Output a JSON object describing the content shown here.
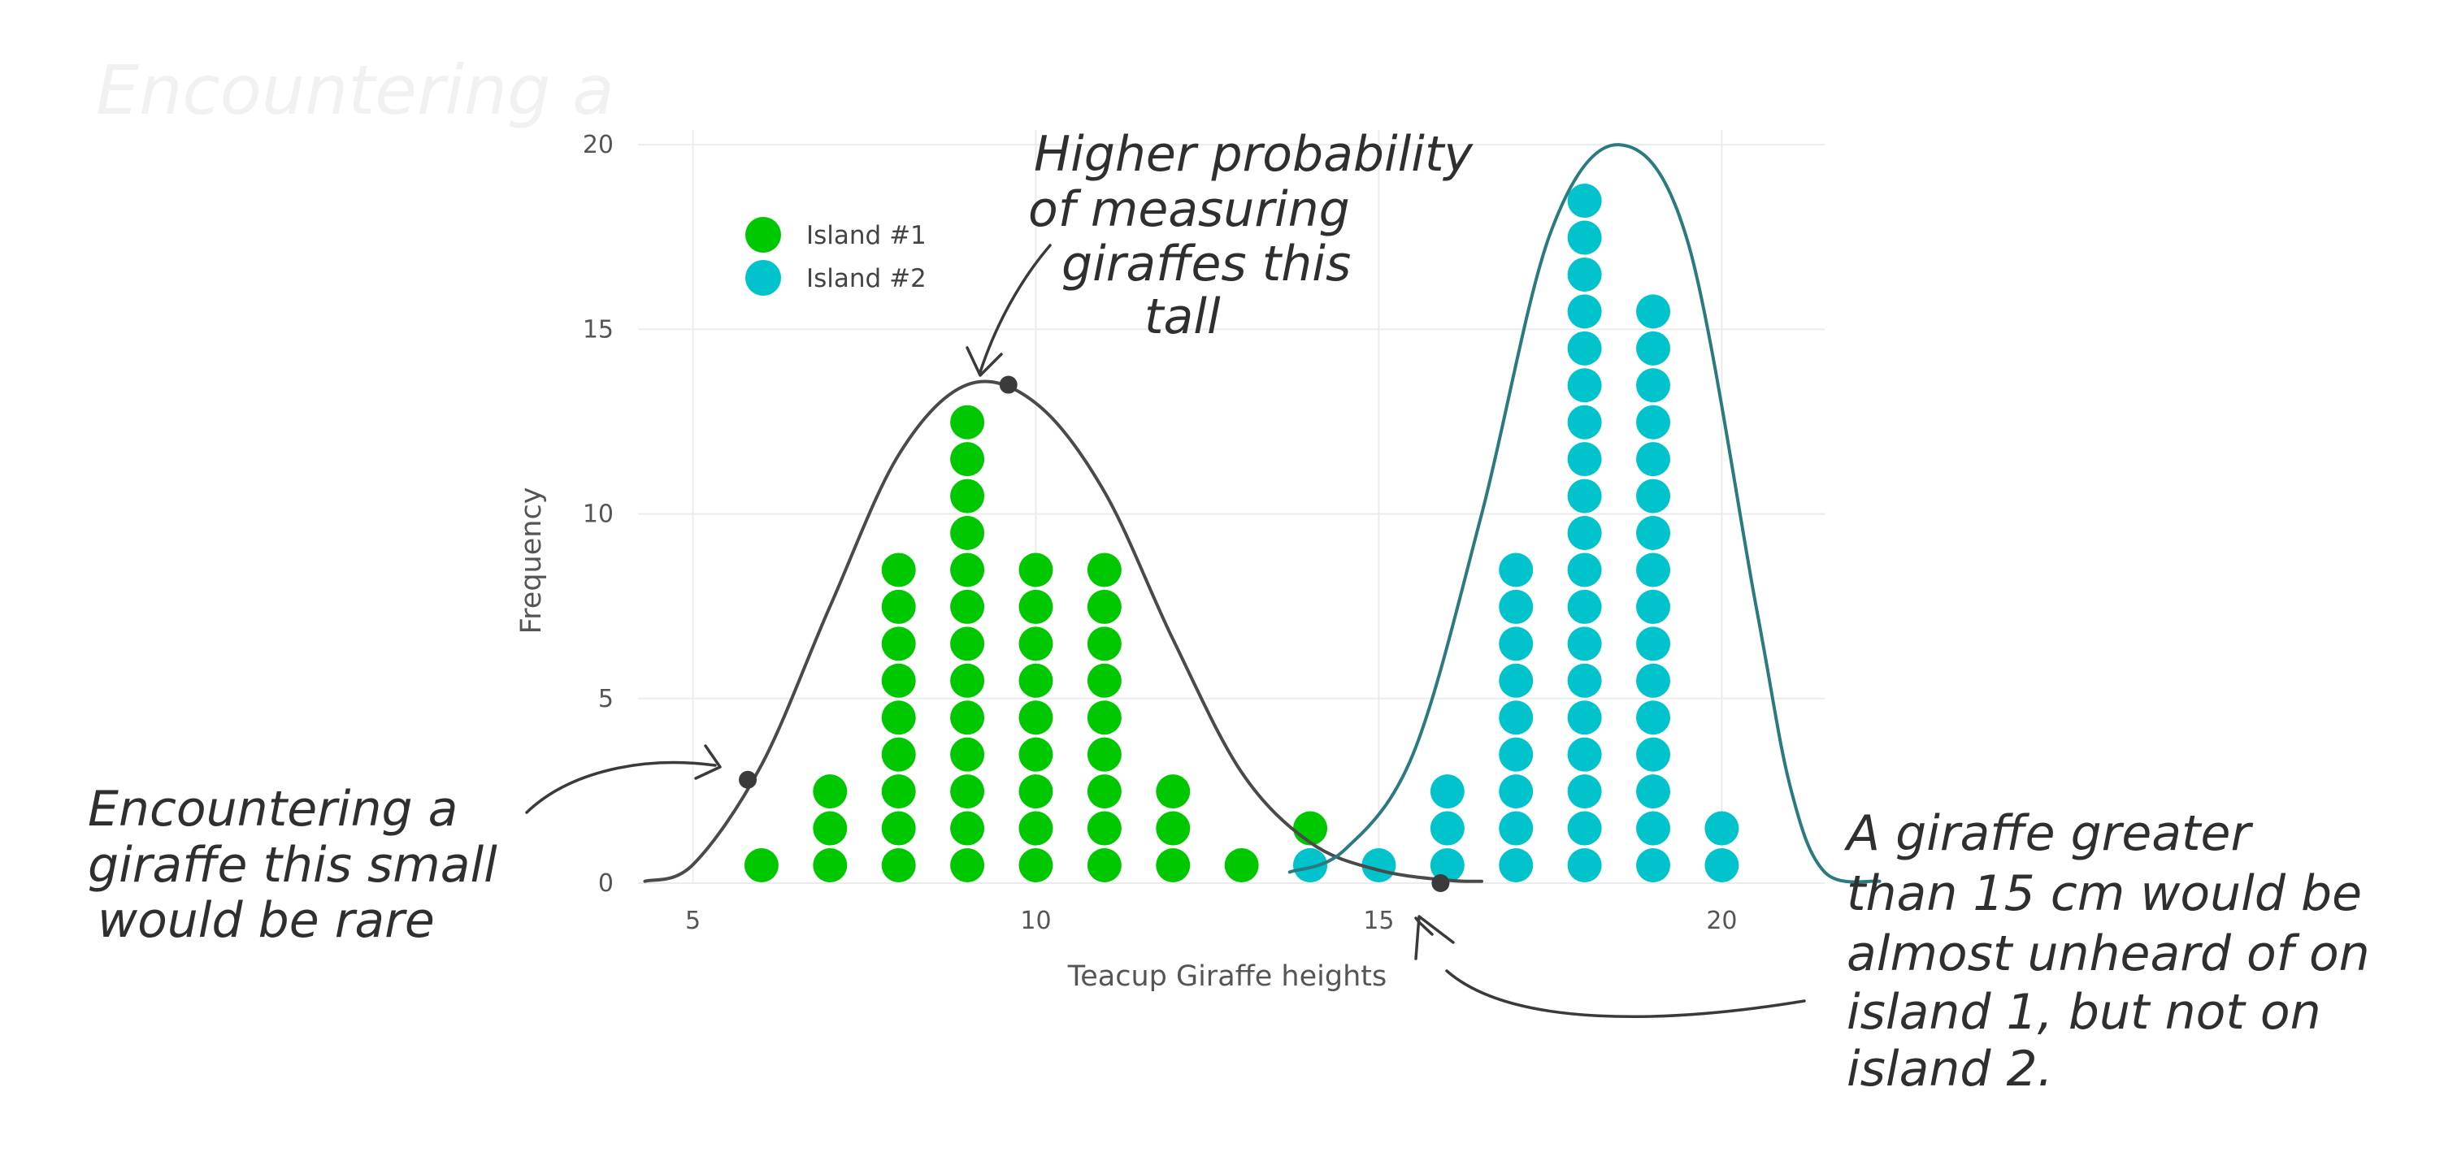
{
  "chart_data": {
    "type": "scatter",
    "subtype": "dot plot",
    "title": "",
    "xlabel": "Teacup Giraffe heights",
    "ylabel": "Frequency",
    "xlim": [
      4.2,
      21.5
    ],
    "ylim": [
      0,
      20.4
    ],
    "xticks": [
      5,
      10,
      15,
      20
    ],
    "yticks": [
      0,
      5,
      10,
      15,
      20
    ],
    "grid": true,
    "legend_position": "top-left",
    "series": [
      {
        "name": "Island #1",
        "color": "#00c800",
        "x": [
          6,
          7,
          8,
          9,
          10,
          11,
          12,
          13,
          14
        ],
        "counts": [
          1,
          3,
          9,
          13,
          9,
          9,
          3,
          1,
          2
        ]
      },
      {
        "name": "Island #2",
        "color": "#00c3cc",
        "x": [
          14,
          15,
          16,
          17,
          18,
          19,
          20
        ],
        "counts": [
          1,
          1,
          3,
          9,
          19,
          16,
          2
        ]
      }
    ],
    "density_curves": [
      {
        "name": "Island #1",
        "color": "#4a4a4a",
        "points": [
          [
            4.3,
            0.05
          ],
          [
            5.0,
            0.5
          ],
          [
            6.0,
            3.2
          ],
          [
            7.0,
            7.5
          ],
          [
            8.0,
            11.6
          ],
          [
            9.0,
            13.5
          ],
          [
            10.0,
            13.0
          ],
          [
            11.0,
            10.6
          ],
          [
            12.0,
            6.6
          ],
          [
            13.0,
            3.0
          ],
          [
            14.0,
            1.1
          ],
          [
            15.0,
            0.35
          ],
          [
            16.0,
            0.08
          ],
          [
            16.5,
            0.05
          ]
        ]
      },
      {
        "name": "Island #2",
        "color": "#2b7a80",
        "points": [
          [
            13.7,
            0.3
          ],
          [
            14.5,
            0.9
          ],
          [
            15.5,
            3.5
          ],
          [
            16.5,
            10.0
          ],
          [
            17.5,
            17.6
          ],
          [
            18.5,
            20.0
          ],
          [
            19.5,
            17.4
          ],
          [
            20.5,
            7.5
          ],
          [
            21.0,
            2.6
          ],
          [
            21.5,
            0.3
          ],
          [
            22.3,
            0.05
          ]
        ]
      }
    ],
    "highlight_points": [
      {
        "x": 5.8,
        "y": 2.8
      },
      {
        "x": 9.6,
        "y": 13.5
      },
      {
        "x": 15.9,
        "y": 0.0
      }
    ],
    "annotations": [
      {
        "id": "rare",
        "lines": [
          "Encountering a",
          "giraffe this small",
          "would be rare"
        ]
      },
      {
        "id": "tall",
        "lines": [
          "Higher probability",
          "of measuring",
          "giraffes this",
          "tall"
        ]
      },
      {
        "id": "island",
        "lines": [
          "A giraffe greater",
          "than 15 cm would be",
          "almost unheard of on",
          "island 1, but not on",
          "island 2."
        ]
      }
    ]
  }
}
